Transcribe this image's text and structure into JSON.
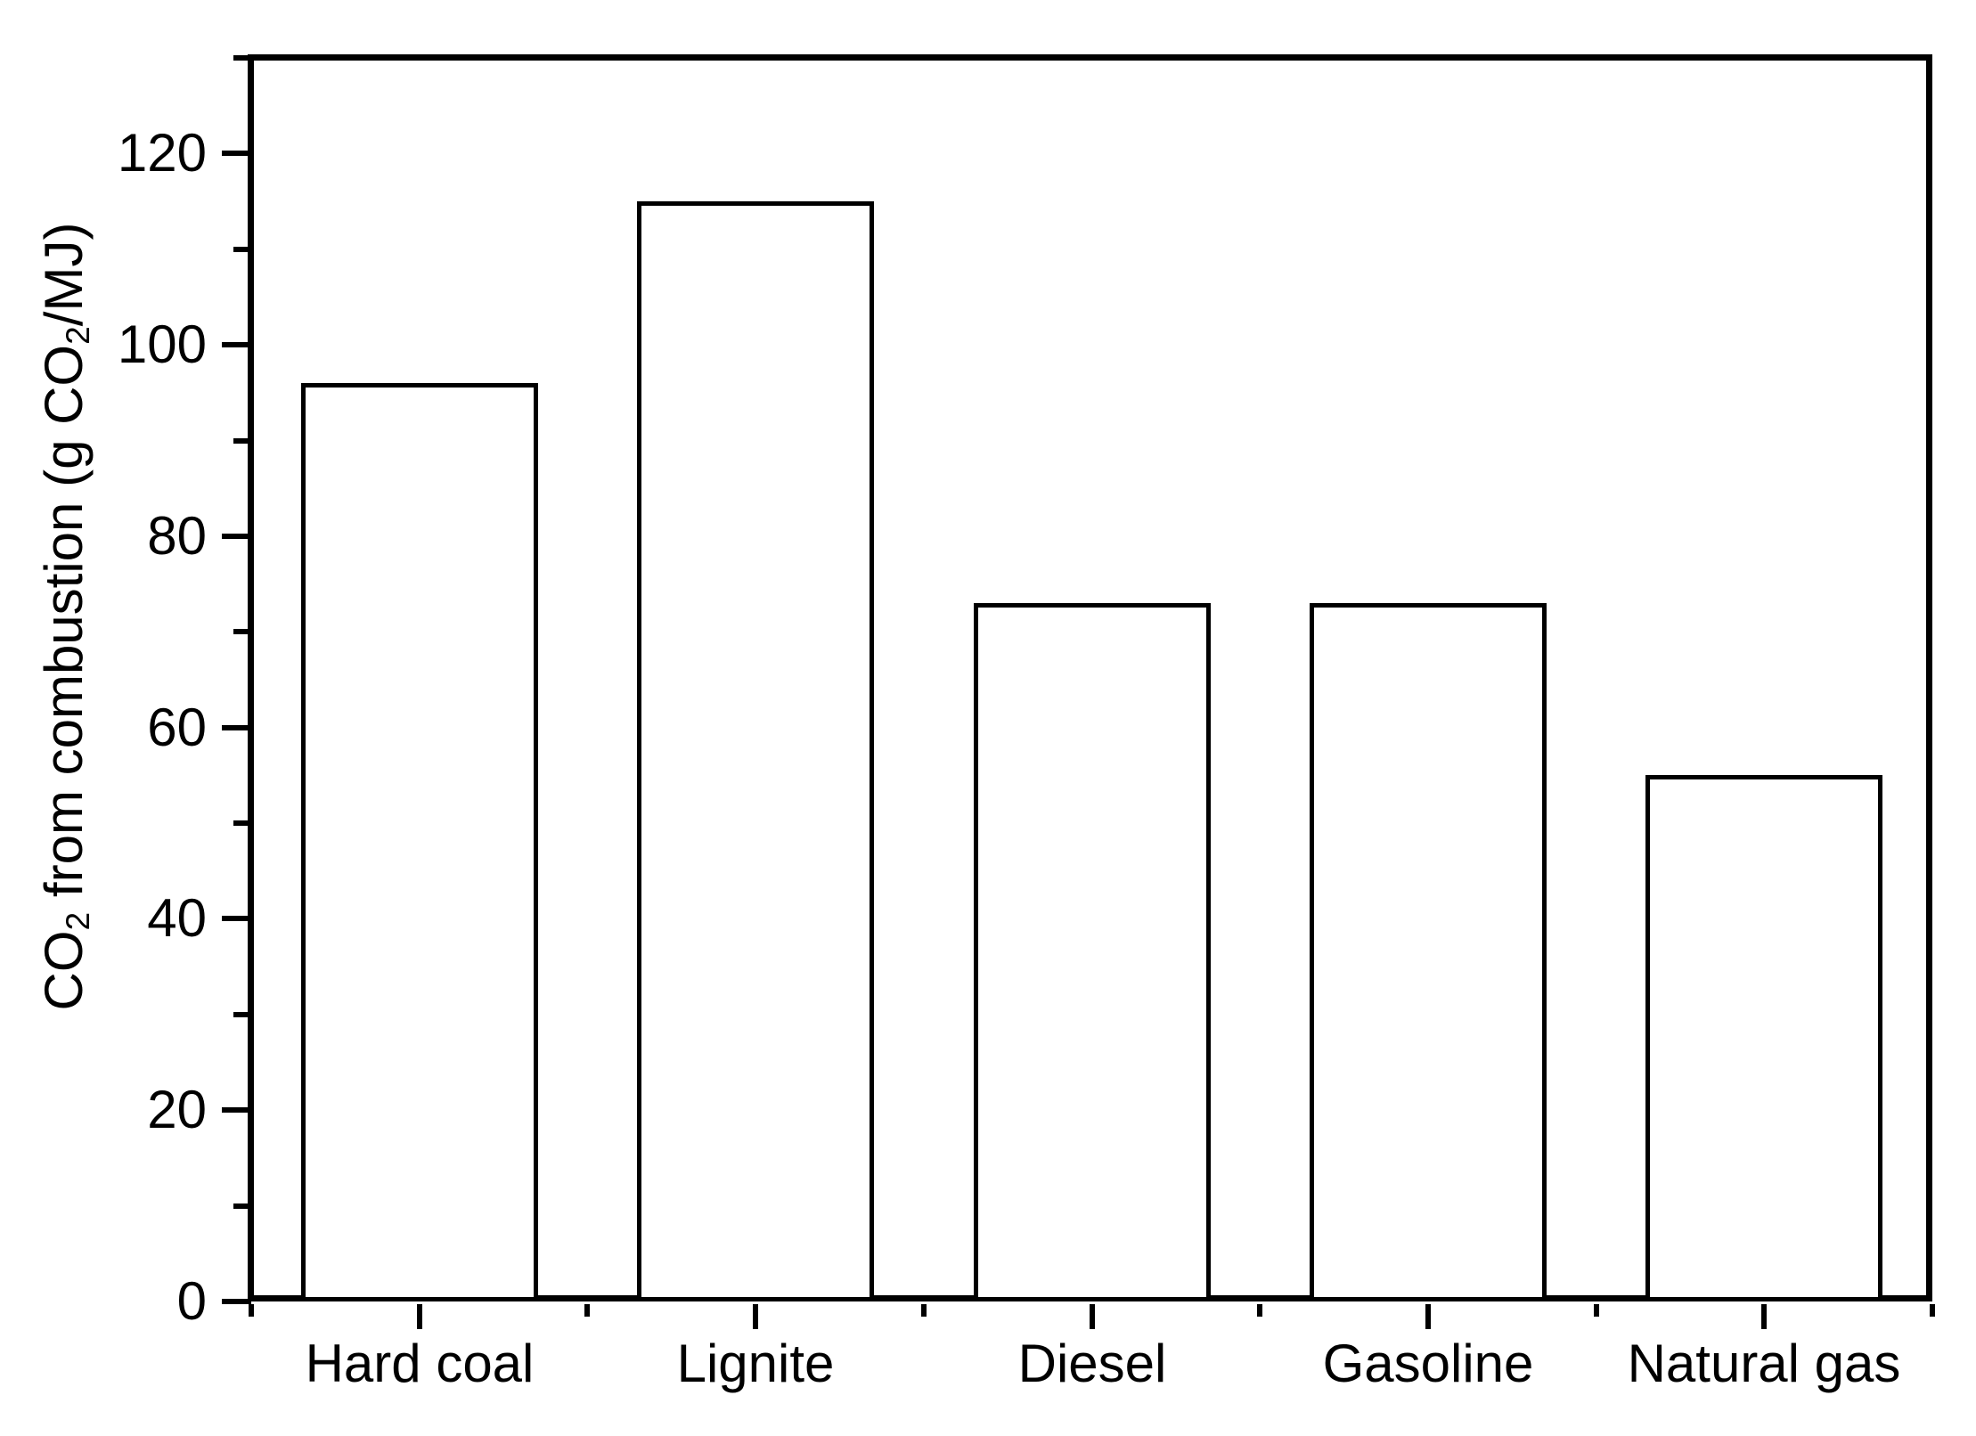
{
  "chart_data": {
    "type": "bar",
    "title": "",
    "categories": [
      "Hard coal",
      "Lignite",
      "Diesel",
      "Gasoline",
      "Natural gas"
    ],
    "values": [
      96,
      115,
      73,
      73,
      55
    ],
    "series": [
      {
        "name": "CO2 from combustion",
        "values": [
          96,
          115,
          73,
          73,
          55
        ]
      }
    ],
    "xlabel": "",
    "ylabel": "CO2 from combustion (g CO2/MJ)",
    "ylabel_segments": [
      {
        "text": "CO"
      },
      {
        "text": "2",
        "sub": true
      },
      {
        "text": " from combustion (g CO"
      },
      {
        "text": "2",
        "sub": true
      },
      {
        "text": "/MJ)"
      }
    ],
    "ylim": [
      0,
      130
    ],
    "ytick_major": [
      0,
      20,
      40,
      60,
      80,
      100,
      120
    ],
    "ytick_minor": [
      10,
      30,
      50,
      70,
      90,
      110,
      130
    ],
    "grid": false,
    "legend": false,
    "background": "#ffffff",
    "axis_color": "#000000",
    "bar_fill": "#ffffff",
    "bar_edge": "#000000"
  }
}
